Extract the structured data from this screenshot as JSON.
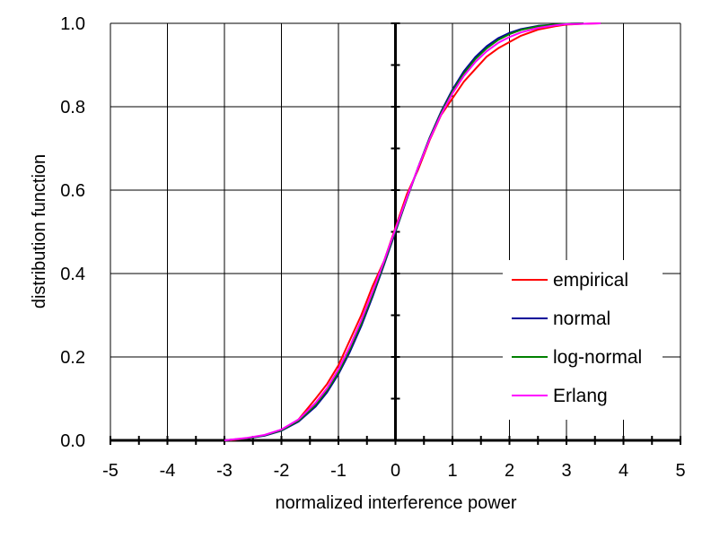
{
  "chart_data": {
    "type": "line",
    "xlabel": "normalized interference power",
    "ylabel": "distribution function",
    "xlim": [
      -5,
      5
    ],
    "ylim": [
      0,
      1
    ],
    "x_ticks": [
      "-5",
      "-4",
      "-3",
      "-2",
      "-1",
      "0",
      "1",
      "2",
      "3",
      "4",
      "5"
    ],
    "y_ticks": [
      "0.0",
      "0.2",
      "0.4",
      "0.6",
      "0.8",
      "1.0"
    ],
    "grid": true,
    "legend_position": "right",
    "series": [
      {
        "name": "empirical",
        "color": "#ff0000",
        "x": [
          -2.9,
          -2.6,
          -2.3,
          -2.0,
          -1.7,
          -1.4,
          -1.2,
          -1.0,
          -0.8,
          -0.6,
          -0.4,
          -0.2,
          0.0,
          0.2,
          0.4,
          0.6,
          0.8,
          1.0,
          1.2,
          1.4,
          1.6,
          1.8,
          2.0,
          2.2,
          2.5,
          2.8,
          3.0,
          3.3,
          3.6
        ],
        "y": [
          0.0,
          0.005,
          0.012,
          0.025,
          0.05,
          0.1,
          0.135,
          0.18,
          0.24,
          0.3,
          0.37,
          0.43,
          0.51,
          0.59,
          0.65,
          0.72,
          0.78,
          0.82,
          0.86,
          0.89,
          0.92,
          0.94,
          0.955,
          0.97,
          0.985,
          0.993,
          0.997,
          0.999,
          1.0
        ]
      },
      {
        "name": "normal",
        "color": "#000099",
        "x": [
          -3.0,
          -2.6,
          -2.3,
          -2.0,
          -1.7,
          -1.4,
          -1.2,
          -1.0,
          -0.8,
          -0.6,
          -0.4,
          -0.2,
          0.0,
          0.2,
          0.4,
          0.6,
          0.8,
          1.0,
          1.2,
          1.4,
          1.6,
          1.8,
          2.0,
          2.2,
          2.5,
          2.8,
          3.0,
          3.3
        ],
        "y": [
          0.0,
          0.005,
          0.011,
          0.023,
          0.045,
          0.081,
          0.115,
          0.159,
          0.212,
          0.274,
          0.345,
          0.421,
          0.5,
          0.579,
          0.655,
          0.726,
          0.788,
          0.841,
          0.885,
          0.919,
          0.945,
          0.964,
          0.977,
          0.986,
          0.994,
          0.997,
          0.999,
          1.0
        ]
      },
      {
        "name": "log-normal",
        "color": "#008000",
        "x": [
          -3.0,
          -2.6,
          -2.3,
          -2.0,
          -1.7,
          -1.4,
          -1.2,
          -1.0,
          -0.8,
          -0.6,
          -0.4,
          -0.2,
          0.0,
          0.2,
          0.4,
          0.6,
          0.8,
          1.0,
          1.2,
          1.4,
          1.6,
          1.8,
          2.0,
          2.2,
          2.5,
          2.8,
          3.0,
          3.3
        ],
        "y": [
          0.0,
          0.005,
          0.012,
          0.024,
          0.047,
          0.085,
          0.12,
          0.163,
          0.218,
          0.28,
          0.35,
          0.425,
          0.503,
          0.58,
          0.655,
          0.724,
          0.785,
          0.837,
          0.88,
          0.914,
          0.94,
          0.96,
          0.974,
          0.984,
          0.993,
          0.997,
          0.999,
          1.0
        ]
      },
      {
        "name": "Erlang",
        "color": "#ff00ff",
        "x": [
          -3.0,
          -2.6,
          -2.3,
          -2.0,
          -1.7,
          -1.4,
          -1.2,
          -1.0,
          -0.8,
          -0.6,
          -0.4,
          -0.2,
          0.0,
          0.2,
          0.4,
          0.6,
          0.8,
          1.0,
          1.2,
          1.4,
          1.6,
          1.8,
          2.0,
          2.2,
          2.5,
          2.8,
          3.0,
          3.3,
          3.6
        ],
        "y": [
          0.0,
          0.006,
          0.013,
          0.026,
          0.05,
          0.09,
          0.125,
          0.17,
          0.225,
          0.288,
          0.357,
          0.43,
          0.507,
          0.582,
          0.655,
          0.722,
          0.781,
          0.832,
          0.874,
          0.907,
          0.933,
          0.953,
          0.967,
          0.978,
          0.989,
          0.995,
          0.998,
          0.999,
          1.0
        ]
      }
    ]
  }
}
